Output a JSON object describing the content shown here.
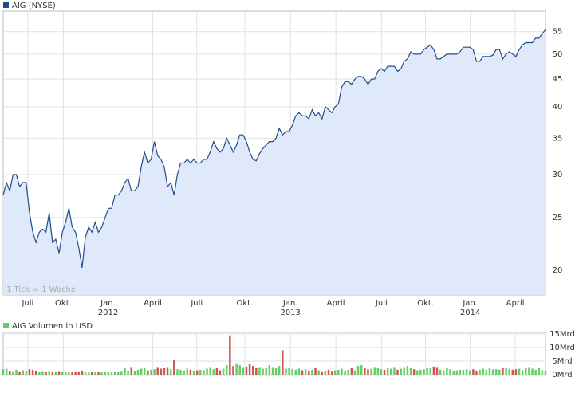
{
  "chart_data": [
    {
      "type": "line",
      "legend": "AIG (NYSE)",
      "legend_color": "#1f4e8c",
      "note": "1 Tick = 1 Woche",
      "color": "#1f4e8c",
      "fill": "#dbe7fa",
      "log": true,
      "grid": true,
      "values": [
        27.5,
        29,
        28,
        30,
        30,
        28.5,
        29,
        29,
        25.5,
        23.5,
        22.5,
        23.5,
        23.8,
        23.5,
        25.5,
        22.5,
        22.8,
        21.5,
        23.5,
        24.5,
        26,
        24,
        23.5,
        22,
        20.2,
        23,
        24,
        23.5,
        24.5,
        23.5,
        24,
        25,
        26,
        26,
        27.5,
        27.5,
        28,
        29,
        29.5,
        28,
        28,
        28.5,
        31,
        33,
        31.5,
        32,
        34.5,
        32.5,
        32,
        31,
        28.5,
        29,
        27.5,
        30,
        31.5,
        31.5,
        32,
        31.5,
        32,
        31.5,
        31.5,
        32,
        32,
        33,
        34.5,
        33.5,
        33,
        33.5,
        35,
        34,
        33,
        34,
        35.5,
        35.5,
        34.5,
        33,
        32,
        31.8,
        32.8,
        33.5,
        34,
        34.5,
        34.5,
        35,
        36.5,
        35.5,
        36,
        36,
        37,
        38.5,
        39,
        38.5,
        38.5,
        38,
        39.5,
        38.5,
        39,
        38,
        40,
        39.5,
        39,
        40,
        40.5,
        43.5,
        44.5,
        44.5,
        44,
        45,
        45.5,
        45.5,
        45,
        44,
        45,
        45,
        46.5,
        47,
        46.5,
        47.5,
        47.5,
        47.5,
        46.5,
        47,
        48.5,
        49,
        50.5,
        50,
        50,
        50,
        51,
        51.5,
        52,
        51,
        49,
        49,
        49.5,
        50,
        50,
        50,
        50,
        50.5,
        51.5,
        51.5,
        51.5,
        51,
        48.5,
        48.5,
        49.5,
        49.5,
        49.5,
        49.8,
        51,
        51,
        49,
        50,
        50.5,
        50,
        49.5,
        51,
        52,
        52.5,
        52.5,
        52.5,
        53.5,
        53.5,
        54.5,
        55.5
      ],
      "xlim": [
        0,
        165
      ],
      "ylim": [
        18,
        60
      ],
      "yticks": [
        20,
        25,
        30,
        35,
        40,
        45,
        50,
        55
      ],
      "xticks": [
        {
          "value": 7.5,
          "label": "Juli"
        },
        {
          "value": 18.3,
          "label": "Okt."
        },
        {
          "value": 31.9,
          "label": "Jan."
        },
        {
          "value": 45.5,
          "label": "April"
        },
        {
          "value": 58.9,
          "label": "Juli"
        },
        {
          "value": 73.5,
          "label": "Okt."
        },
        {
          "value": 87.4,
          "label": "Jan."
        },
        {
          "value": 101.2,
          "label": "April"
        },
        {
          "value": 115.1,
          "label": "Juli"
        },
        {
          "value": 128.5,
          "label": "Okt."
        },
        {
          "value": 142.1,
          "label": "Jan."
        },
        {
          "value": 155.8,
          "label": "April"
        }
      ],
      "xtick_years": [
        {
          "value": 31.9,
          "label": "2012"
        },
        {
          "value": 87.4,
          "label": "2013"
        },
        {
          "value": 142.1,
          "label": "2014"
        }
      ]
    },
    {
      "type": "bar",
      "legend": "AIG Volumen in USD",
      "legend_color": "#66cc66",
      "up_color": "#66cc66",
      "down_color": "#cc5555",
      "grid": true,
      "values": [
        2,
        2.2,
        1.5,
        1.3,
        1.8,
        1.2,
        1.6,
        1.4,
        2,
        1.8,
        1.5,
        1.2,
        1.3,
        1,
        1.4,
        1.1,
        1.2,
        1.3,
        1,
        1.2,
        1.1,
        0.9,
        1,
        1.2,
        1.5,
        1.1,
        0.8,
        1,
        0.9,
        1,
        0.8,
        0.9,
        1,
        0.8,
        1.2,
        1,
        1.4,
        2.5,
        1.5,
        2.8,
        1.5,
        1.8,
        2.2,
        2.5,
        1.6,
        1.8,
        2,
        2.8,
        2.2,
        2.5,
        2.8,
        2,
        5.5,
        2,
        1.8,
        1.5,
        2.2,
        1.8,
        1.5,
        1.6,
        1.8,
        1.6,
        2.2,
        2.8,
        2,
        2.5,
        1.6,
        2.2,
        3.5,
        14.5,
        3.2,
        4.2,
        3.5,
        2.8,
        3,
        4,
        3.2,
        2.5,
        2.8,
        2.2,
        2.5,
        3.5,
        2.8,
        2.6,
        3.2,
        9,
        2.2,
        2.5,
        2,
        1.8,
        2.2,
        1.6,
        2,
        1.5,
        1.8,
        2.4,
        1.6,
        1.2,
        1.5,
        1.8,
        1.4,
        1.6,
        1.8,
        2.2,
        1.5,
        1.8,
        2.5,
        1.6,
        3.2,
        3.5,
        2.5,
        2,
        2.2,
        2.8,
        2.5,
        2,
        1.8,
        2.6,
        2.2,
        2.8,
        1.8,
        2.2,
        2.8,
        3.2,
        2.4,
        2,
        1.6,
        1.8,
        2,
        2.4,
        2.6,
        3,
        2.8,
        1.8,
        1.6,
        2.4,
        2,
        1.5,
        1.6,
        1.8,
        1.8,
        2,
        1.6,
        2,
        1.5,
        1.8,
        2.2,
        1.8,
        2.4,
        2,
        2,
        1.8,
        2.4,
        2.6,
        2.2,
        1.8,
        2,
        2.2,
        1.6,
        2.4,
        2.8,
        2.2,
        1.8,
        2.4,
        1.6,
        1.5
      ],
      "ylim": [
        0,
        15
      ],
      "yticks": [
        {
          "value": 0,
          "label": "0Mrd"
        },
        {
          "value": 5,
          "label": "5Mrd"
        },
        {
          "value": 10,
          "label": "10Mrd"
        },
        {
          "value": 15,
          "label": "15Mrd"
        }
      ]
    }
  ]
}
